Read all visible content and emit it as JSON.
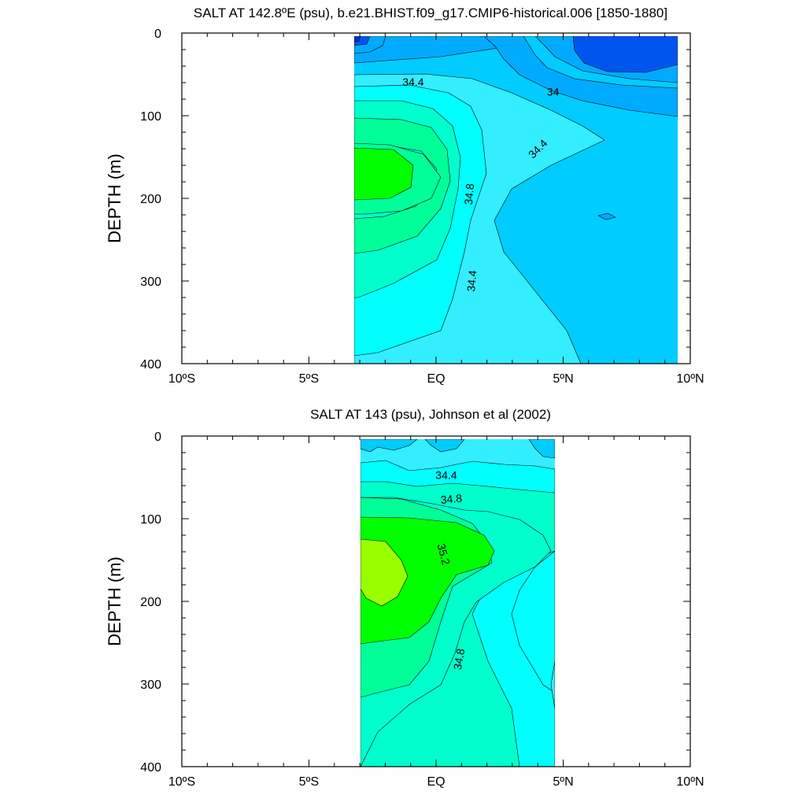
{
  "chart_data": [
    {
      "type": "contour",
      "title": "SALT AT 142.8ºE (psu), b.e21.BHIST.f09_g17.CMIP6-historical.006 [1850-1880]",
      "xlabel": "",
      "ylabel": "DEPTH (m)",
      "xlim": [
        -10,
        10
      ],
      "ylim": [
        400,
        0
      ],
      "x_ticks": [
        -10,
        -5,
        0,
        5,
        10
      ],
      "x_tick_labels": [
        "10ºS",
        "5ºS",
        "EQ",
        "5ºN",
        "10ºN"
      ],
      "y_ticks": [
        0,
        100,
        200,
        300,
        400
      ],
      "y_tick_labels": [
        "0",
        "100",
        "200",
        "300",
        "400"
      ],
      "data_extent": {
        "lat": [
          -3,
          10
        ],
        "depth": [
          5,
          400
        ]
      },
      "contour_labels": [
        {
          "text": "34.4",
          "lat": -0.9,
          "depth": 59,
          "angle": 0
        },
        {
          "text": "34",
          "lat": 4.6,
          "depth": 71,
          "angle": 0
        },
        {
          "text": "34.4",
          "lat": 4.0,
          "depth": 140,
          "angle": -45
        },
        {
          "text": "34.8",
          "lat": 1.3,
          "depth": 195,
          "angle": -85
        },
        {
          "text": "34.4",
          "lat": 1.4,
          "depth": 300,
          "angle": -85
        }
      ]
    },
    {
      "type": "contour",
      "title": "SALT AT 143 (psu), Johnson et al (2002)",
      "xlabel": "",
      "ylabel": "DEPTH (m)",
      "xlim": [
        -10,
        10
      ],
      "ylim": [
        400,
        0
      ],
      "x_ticks": [
        -10,
        -5,
        0,
        5,
        10
      ],
      "x_tick_labels": [
        "10ºS",
        "5ºS",
        "EQ",
        "5ºN",
        "10ºN"
      ],
      "y_ticks": [
        0,
        100,
        200,
        300,
        400
      ],
      "y_tick_labels": [
        "0",
        "100",
        "200",
        "300",
        "400"
      ],
      "data_extent": {
        "lat": [
          -2.75,
          5
        ],
        "depth": [
          5,
          400
        ]
      },
      "contour_labels": [
        {
          "text": "34.4",
          "lat": 0.4,
          "depth": 47,
          "angle": 0
        },
        {
          "text": "34.8",
          "lat": 0.6,
          "depth": 76,
          "angle": -5
        },
        {
          "text": "35.2",
          "lat": 0.3,
          "depth": 143,
          "angle": 75
        },
        {
          "text": "34.8",
          "lat": 0.9,
          "depth": 270,
          "angle": -80
        }
      ]
    }
  ],
  "colors": {
    "sal_lt_33_8": "#0033cc",
    "sal_33_8": "#0055ee",
    "sal_34_0": "#00aaff",
    "sal_34_2": "#00ccff",
    "sal_34_4": "#33eeff",
    "sal_34_6": "#00ffff",
    "sal_34_8": "#00ffcc",
    "sal_35_0": "#00ff99",
    "sal_35_2": "#00ff00",
    "sal_35_4": "#99ff00"
  }
}
